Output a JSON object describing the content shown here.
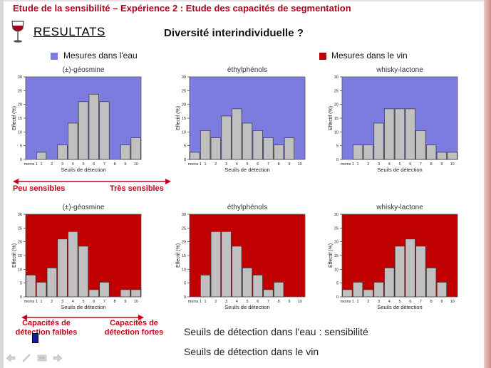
{
  "header": {
    "title": "Etude de la sensibilité – Expérience 2 : Etude des capacités de segmentation",
    "section_title": "RESULTATS",
    "question": "Diversité interindividuelle ?"
  },
  "legend": {
    "water_label": "Mesures dans l'eau",
    "water_color": "#7b7be0",
    "wine_label": "Mesures dans le vin",
    "wine_color": "#c00000"
  },
  "chart_data": [
    {
      "type": "bar",
      "title": "(±)-géosmine",
      "medium": "eau",
      "categories": [
        "moins 1",
        "1",
        "2",
        "3",
        "4",
        "5",
        "6",
        "7",
        "8",
        "9",
        "10"
      ],
      "values": [
        0,
        2.6,
        0,
        5.3,
        13.2,
        21,
        23.7,
        21,
        0,
        5.3,
        7.9
      ],
      "xlabel": "Seuils de détection",
      "ylabel": "Effectif (%)",
      "ylim": [
        0,
        30
      ],
      "yticks": [
        "0",
        "5",
        "10",
        "15",
        "20",
        "25",
        "30"
      ],
      "grid": false
    },
    {
      "type": "bar",
      "title": "éthylphénols",
      "medium": "eau",
      "categories": [
        "moins 1",
        "1",
        "2",
        "3",
        "4",
        "5",
        "6",
        "7",
        "8",
        "9",
        "10"
      ],
      "values": [
        2.6,
        10.5,
        7.9,
        15.8,
        18.4,
        13.2,
        10.5,
        7.9,
        5.3,
        7.9,
        0
      ],
      "xlabel": "Seuils de détection",
      "ylabel": "Effectif (%)",
      "ylim": [
        0,
        30
      ],
      "yticks": [
        "0",
        "5",
        "10",
        "15",
        "20",
        "25",
        "30"
      ],
      "grid": false
    },
    {
      "type": "bar",
      "title": "whisky-lactone",
      "medium": "eau",
      "categories": [
        "moins 1",
        "1",
        "2",
        "3",
        "4",
        "5",
        "6",
        "7",
        "8",
        "9",
        "10"
      ],
      "values": [
        0,
        5.3,
        5.3,
        13.2,
        18.4,
        18.4,
        18.4,
        10.5,
        5.3,
        2.6,
        2.6
      ],
      "xlabel": "Seuils de détection",
      "ylabel": "Effectif (%)",
      "ylim": [
        0,
        30
      ],
      "yticks": [
        "0",
        "5",
        "10",
        "15",
        "20",
        "25",
        "30"
      ],
      "grid": false
    },
    {
      "type": "bar",
      "title": "(±)-géosmine",
      "medium": "vin",
      "categories": [
        "moins 1",
        "1",
        "2",
        "3",
        "4",
        "5",
        "6",
        "7",
        "8",
        "9",
        "10"
      ],
      "values": [
        7.9,
        5.3,
        10.5,
        21,
        23.7,
        18.4,
        2.6,
        5.3,
        0,
        2.6,
        2.6
      ],
      "xlabel": "Seuils de détection",
      "ylabel": "Effectif (%)",
      "ylim": [
        0,
        30
      ],
      "yticks": [
        "0",
        "5",
        "10",
        "15",
        "20",
        "25",
        "30"
      ],
      "grid": false
    },
    {
      "type": "bar",
      "title": "éthylphénols",
      "medium": "vin",
      "categories": [
        "moins 1",
        "1",
        "2",
        "3",
        "4",
        "5",
        "6",
        "7",
        "8",
        "9",
        "10"
      ],
      "values": [
        0,
        7.9,
        23.7,
        23.7,
        18.4,
        10.5,
        7.9,
        2.6,
        5.3,
        0,
        0
      ],
      "xlabel": "Seuils de détection",
      "ylabel": "Effectif (%)",
      "ylim": [
        0,
        30
      ],
      "yticks": [
        "0",
        "5",
        "10",
        "15",
        "20",
        "25",
        "30"
      ],
      "grid": false
    },
    {
      "type": "bar",
      "title": "whisky-lactone",
      "medium": "vin",
      "categories": [
        "moins 1",
        "1",
        "2",
        "3",
        "4",
        "5",
        "6",
        "7",
        "8",
        "9",
        "10"
      ],
      "values": [
        2.6,
        5.3,
        2.6,
        5.3,
        10.5,
        18.4,
        21,
        18.4,
        10.5,
        5.3,
        0
      ],
      "xlabel": "Seuils de détection",
      "ylabel": "Effectif (%)",
      "ylim": [
        0,
        30
      ],
      "yticks": [
        "0",
        "5",
        "10",
        "15",
        "20",
        "25",
        "30"
      ],
      "grid": false
    }
  ],
  "annotations": {
    "peu_sensibles": "Peu sensibles",
    "tres_sensibles": "Très sensibles",
    "capacites_faibles": "Capacités de détection faibles",
    "capacites_fortes": "Capacités de détection fortes",
    "arrow_color": "#c8001a"
  },
  "info": {
    "line1": "Seuils de détection dans l'eau : sensibilité",
    "line2": "Seuils de détection dans le vin"
  },
  "nav": {
    "icons": [
      "arrow-left-icon",
      "pen-icon",
      "slide-menu-icon",
      "arrow-right-icon"
    ]
  }
}
